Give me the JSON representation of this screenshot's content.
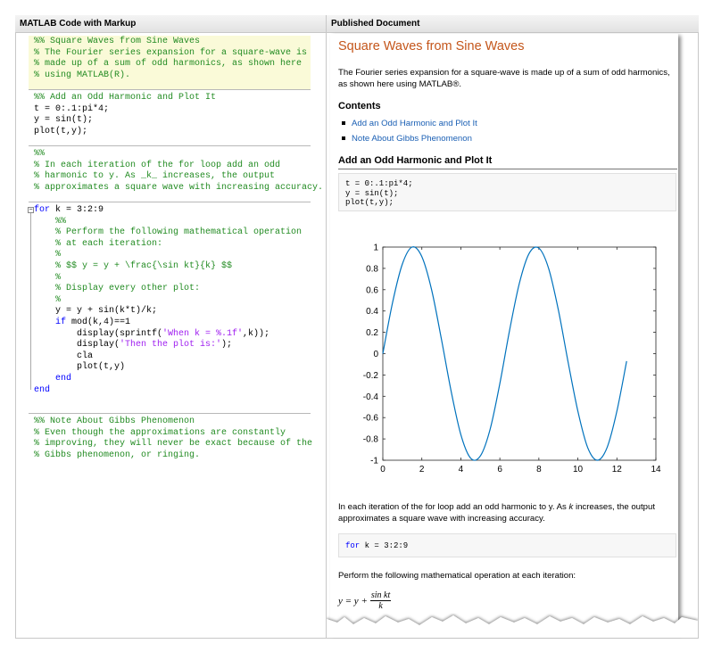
{
  "left_panel": {
    "header": "MATLAB Code with Markup",
    "cells": [
      {
        "lines": [
          [
            {
              "text": "%% Square Waves from Sine Waves",
              "kind": "comment"
            }
          ],
          [
            {
              "text": "% The Fourier series expansion for a square-wave is",
              "kind": "comment"
            }
          ],
          [
            {
              "text": "% made up of a sum of odd harmonics, as shown here",
              "kind": "comment"
            }
          ],
          [
            {
              "text": "% using MATLAB(R).",
              "kind": "comment"
            }
          ]
        ]
      },
      {
        "lines": [
          [
            {
              "text": "%% Add an Odd Harmonic and Plot It",
              "kind": "comment"
            }
          ],
          [
            {
              "text": "t = 0:.1:pi*4;",
              "kind": "code"
            }
          ],
          [
            {
              "text": "y = sin(t);",
              "kind": "code"
            }
          ],
          [
            {
              "text": "plot(t,y);",
              "kind": "code"
            }
          ]
        ]
      },
      {
        "lines": [
          [
            {
              "text": "%%",
              "kind": "comment"
            }
          ],
          [
            {
              "text": "% In each iteration of the for loop add an odd",
              "kind": "comment"
            }
          ],
          [
            {
              "text": "% harmonic to y. As _k_ increases, the output",
              "kind": "comment"
            }
          ],
          [
            {
              "text": "% approximates a square wave with increasing accuracy.",
              "kind": "comment"
            }
          ]
        ]
      },
      {
        "lines": [
          [
            {
              "text": "for",
              "kind": "keyword"
            },
            {
              "text": " k = 3:2:9",
              "kind": "code"
            }
          ],
          [
            {
              "text": "    %%",
              "kind": "comment"
            }
          ],
          [
            {
              "text": "    % Perform the following mathematical operation",
              "kind": "comment"
            }
          ],
          [
            {
              "text": "    % at each iteration:",
              "kind": "comment"
            }
          ],
          [
            {
              "text": "    %",
              "kind": "comment"
            }
          ],
          [
            {
              "text": "    % $$ y = y + \\frac{\\sin kt}{k} $$",
              "kind": "comment"
            }
          ],
          [
            {
              "text": "    %",
              "kind": "comment"
            }
          ],
          [
            {
              "text": "    % Display every other plot:",
              "kind": "comment"
            }
          ],
          [
            {
              "text": "    %",
              "kind": "comment"
            }
          ],
          [
            {
              "text": "    y = y + sin(k*t)/k;",
              "kind": "code"
            }
          ],
          [
            {
              "text": "    if",
              "kind": "keyword"
            },
            {
              "text": " mod(k,4)==1",
              "kind": "code"
            }
          ],
          [
            {
              "text": "        display(sprintf(",
              "kind": "code"
            },
            {
              "text": "'When k = %.1f'",
              "kind": "string"
            },
            {
              "text": ",k));",
              "kind": "code"
            }
          ],
          [
            {
              "text": "        display(",
              "kind": "code"
            },
            {
              "text": "'Then the plot is:'",
              "kind": "string"
            },
            {
              "text": ");",
              "kind": "code"
            }
          ],
          [
            {
              "text": "        cla",
              "kind": "code"
            }
          ],
          [
            {
              "text": "        plot(t,y)",
              "kind": "code"
            }
          ],
          [
            {
              "text": "    end",
              "kind": "keyword"
            }
          ],
          [
            {
              "text": "end",
              "kind": "keyword"
            }
          ]
        ]
      },
      {
        "lines": [
          [
            {
              "text": "%% Note About Gibbs Phenomenon",
              "kind": "comment"
            }
          ],
          [
            {
              "text": "% Even though the approximations are constantly",
              "kind": "comment"
            }
          ],
          [
            {
              "text": "% improving, they will never be exact because of the",
              "kind": "comment"
            }
          ],
          [
            {
              "text": "% Gibbs phenomenon, or ringing.",
              "kind": "comment"
            }
          ]
        ]
      }
    ]
  },
  "right_panel": {
    "header": "Published Document",
    "title": "Square Waves from Sine Waves",
    "intro": "The Fourier series expansion for a square-wave is made up of a sum of odd harmonics, as shown here using MATLAB®.",
    "contents_heading": "Contents",
    "contents": [
      "Add an Odd Harmonic and Plot It",
      "Note About Gibbs Phenomenon"
    ],
    "section_heading": "Add an Odd Harmonic and Plot It",
    "code_block": [
      "t = 0:.1:pi*4;",
      "y = sin(t);",
      "plot(t,y);"
    ],
    "paragraph": [
      {
        "text": "In each iteration of the for loop add an odd harmonic to y. As ",
        "style": "normal"
      },
      {
        "text": "k",
        "style": "italic"
      },
      {
        "text": " increases, the output approximates a square wave with increasing accuracy.",
        "style": "normal"
      }
    ],
    "loop_code": [
      {
        "text": "for",
        "kind": "keyword"
      },
      {
        "text": " k = 3:2:9",
        "kind": "code"
      }
    ],
    "operation_text": "Perform the following mathematical operation at each iteration:",
    "formula": {
      "lhs": "y = y +",
      "numerator": "sin kt",
      "denominator": "k"
    }
  },
  "chart_data": {
    "type": "line",
    "x": [
      0,
      0.5,
      1,
      1.5,
      2,
      2.5,
      3,
      3.5,
      4,
      4.5,
      5,
      5.5,
      6,
      6.5,
      7,
      7.5,
      8,
      8.5,
      9,
      9.5,
      10,
      10.5,
      11,
      11.5,
      12,
      12.5
    ],
    "values": [
      0,
      0.48,
      0.84,
      1.0,
      0.91,
      0.6,
      0.14,
      -0.35,
      -0.76,
      -0.98,
      -0.96,
      -0.71,
      -0.28,
      0.22,
      0.66,
      0.94,
      0.99,
      0.8,
      0.41,
      -0.08,
      -0.54,
      -0.88,
      -1.0,
      -0.88,
      -0.54,
      -0.07
    ],
    "color": "#0072bd",
    "xlim": [
      0,
      14
    ],
    "xticks": [
      0,
      2,
      4,
      6,
      8,
      10,
      12,
      14
    ],
    "ylim": [
      -1,
      1
    ],
    "yticks": [
      -1,
      -0.8,
      -0.6,
      -0.4,
      -0.2,
      0,
      0.2,
      0.4,
      0.6,
      0.8,
      1
    ]
  }
}
